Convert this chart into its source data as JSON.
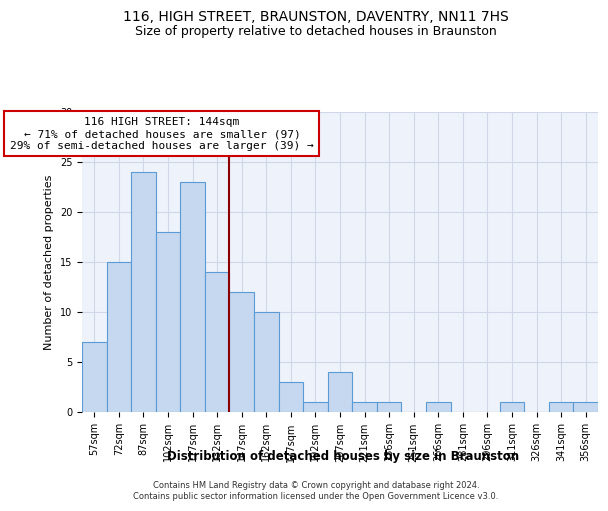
{
  "title1": "116, HIGH STREET, BRAUNSTON, DAVENTRY, NN11 7HS",
  "title2": "Size of property relative to detached houses in Braunston",
  "xlabel": "Distribution of detached houses by size in Braunston",
  "ylabel": "Number of detached properties",
  "categories": [
    "57sqm",
    "72sqm",
    "87sqm",
    "102sqm",
    "117sqm",
    "132sqm",
    "147sqm",
    "162sqm",
    "177sqm",
    "192sqm",
    "207sqm",
    "221sqm",
    "236sqm",
    "251sqm",
    "266sqm",
    "281sqm",
    "296sqm",
    "311sqm",
    "326sqm",
    "341sqm",
    "356sqm"
  ],
  "values": [
    7,
    15,
    24,
    18,
    23,
    14,
    12,
    10,
    3,
    1,
    4,
    1,
    1,
    0,
    1,
    0,
    0,
    1,
    0,
    1,
    1
  ],
  "bar_color": "#c5d8f0",
  "bar_edge_color": "#5b9bd5",
  "vline_x": 5.5,
  "vline_color": "#8b0000",
  "annotation_line1": "116 HIGH STREET: 144sqm",
  "annotation_line2": "← 71% of detached houses are smaller (97)",
  "annotation_line3": "29% of semi-detached houses are larger (39) →",
  "annotation_box_color": "#ffffff",
  "annotation_box_edge": "#cc0000",
  "ylim": [
    0,
    30
  ],
  "yticks": [
    0,
    5,
    10,
    15,
    20,
    25,
    30
  ],
  "grid_color": "#d0d8e8",
  "background_color": "#eef2fa",
  "footer1": "Contains HM Land Registry data © Crown copyright and database right 2024.",
  "footer2": "Contains public sector information licensed under the Open Government Licence v3.0.",
  "title1_fontsize": 10,
  "title2_fontsize": 9,
  "xlabel_fontsize": 8.5,
  "ylabel_fontsize": 8,
  "tick_fontsize": 7,
  "annotation_fontsize": 8,
  "footer_fontsize": 6
}
